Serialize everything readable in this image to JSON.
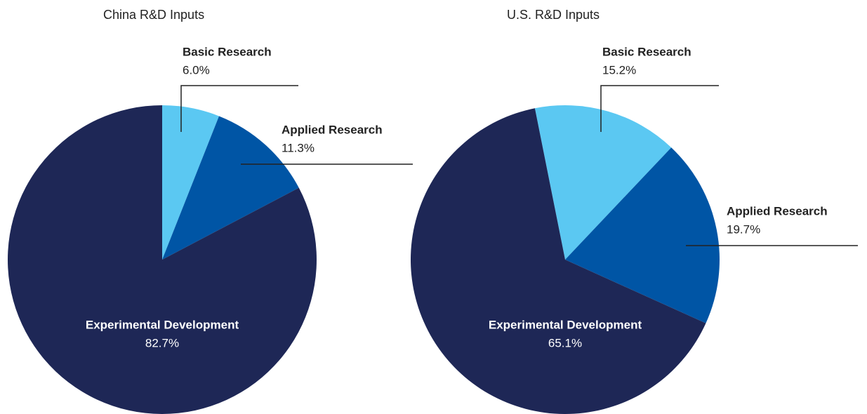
{
  "chart_data": [
    {
      "type": "pie",
      "title": "China R&D Inputs",
      "categories": [
        "Basic Research",
        "Applied Research",
        "Experimental Development"
      ],
      "values": [
        6.0,
        11.3,
        82.7
      ],
      "value_labels": [
        "6.0%",
        "11.3%",
        "82.7%"
      ],
      "colors": [
        "#5bc8f2",
        "#0055a5",
        "#1e2756"
      ]
    },
    {
      "type": "pie",
      "title": "U.S. R&D Inputs",
      "categories": [
        "Basic Research",
        "Applied Research",
        "Experimental Development"
      ],
      "values": [
        15.2,
        19.7,
        65.1
      ],
      "value_labels": [
        "15.2%",
        "19.7%",
        "65.1%"
      ],
      "colors": [
        "#5bc8f2",
        "#0055a5",
        "#1e2756"
      ]
    }
  ]
}
